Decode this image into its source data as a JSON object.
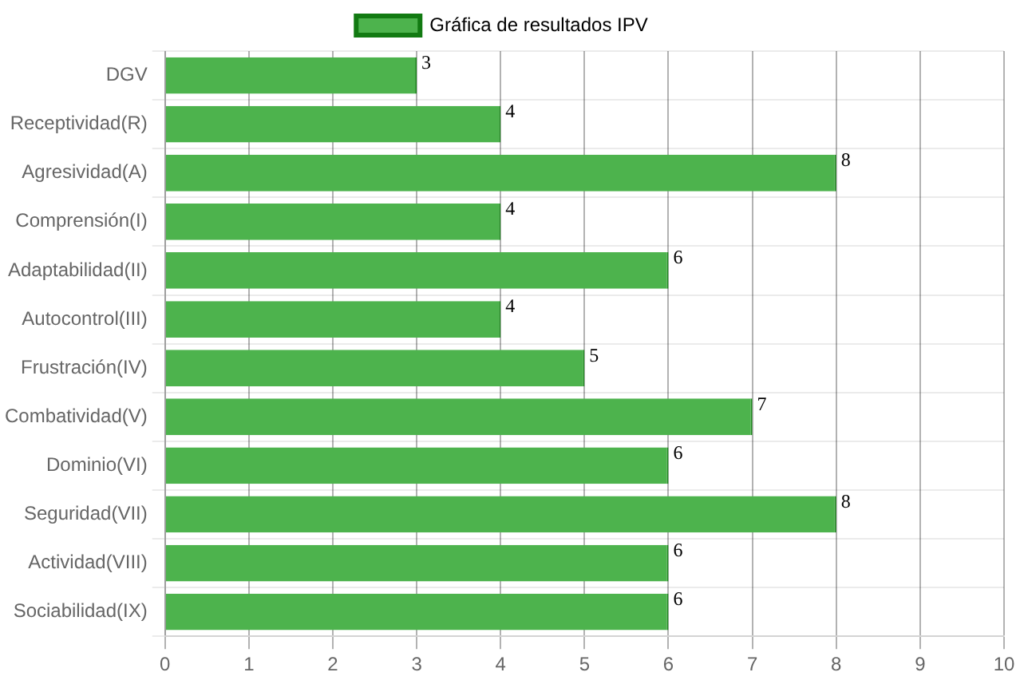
{
  "chart_data": {
    "type": "bar",
    "orientation": "horizontal",
    "categories": [
      "DGV",
      "Receptividad(R)",
      "Agresividad(A)",
      "Comprensión(I)",
      "Adaptabilidad(II)",
      "Autocontrol(III)",
      "Frustración(IV)",
      "Combatividad(V)",
      "Dominio(VI)",
      "Seguridad(VII)",
      "Actividad(VIII)",
      "Sociabilidad(IX)"
    ],
    "series": [
      {
        "name": "Gráfica de resultados IPV",
        "color": "#4db34d",
        "values": [
          3,
          4,
          8,
          4,
          6,
          4,
          5,
          7,
          6,
          8,
          6,
          6
        ]
      }
    ],
    "xlim": [
      0,
      10
    ],
    "xticks": [
      0,
      1,
      2,
      3,
      4,
      5,
      6,
      7,
      8,
      9,
      10
    ],
    "grid": true,
    "legend": "top",
    "data_labels": true
  }
}
